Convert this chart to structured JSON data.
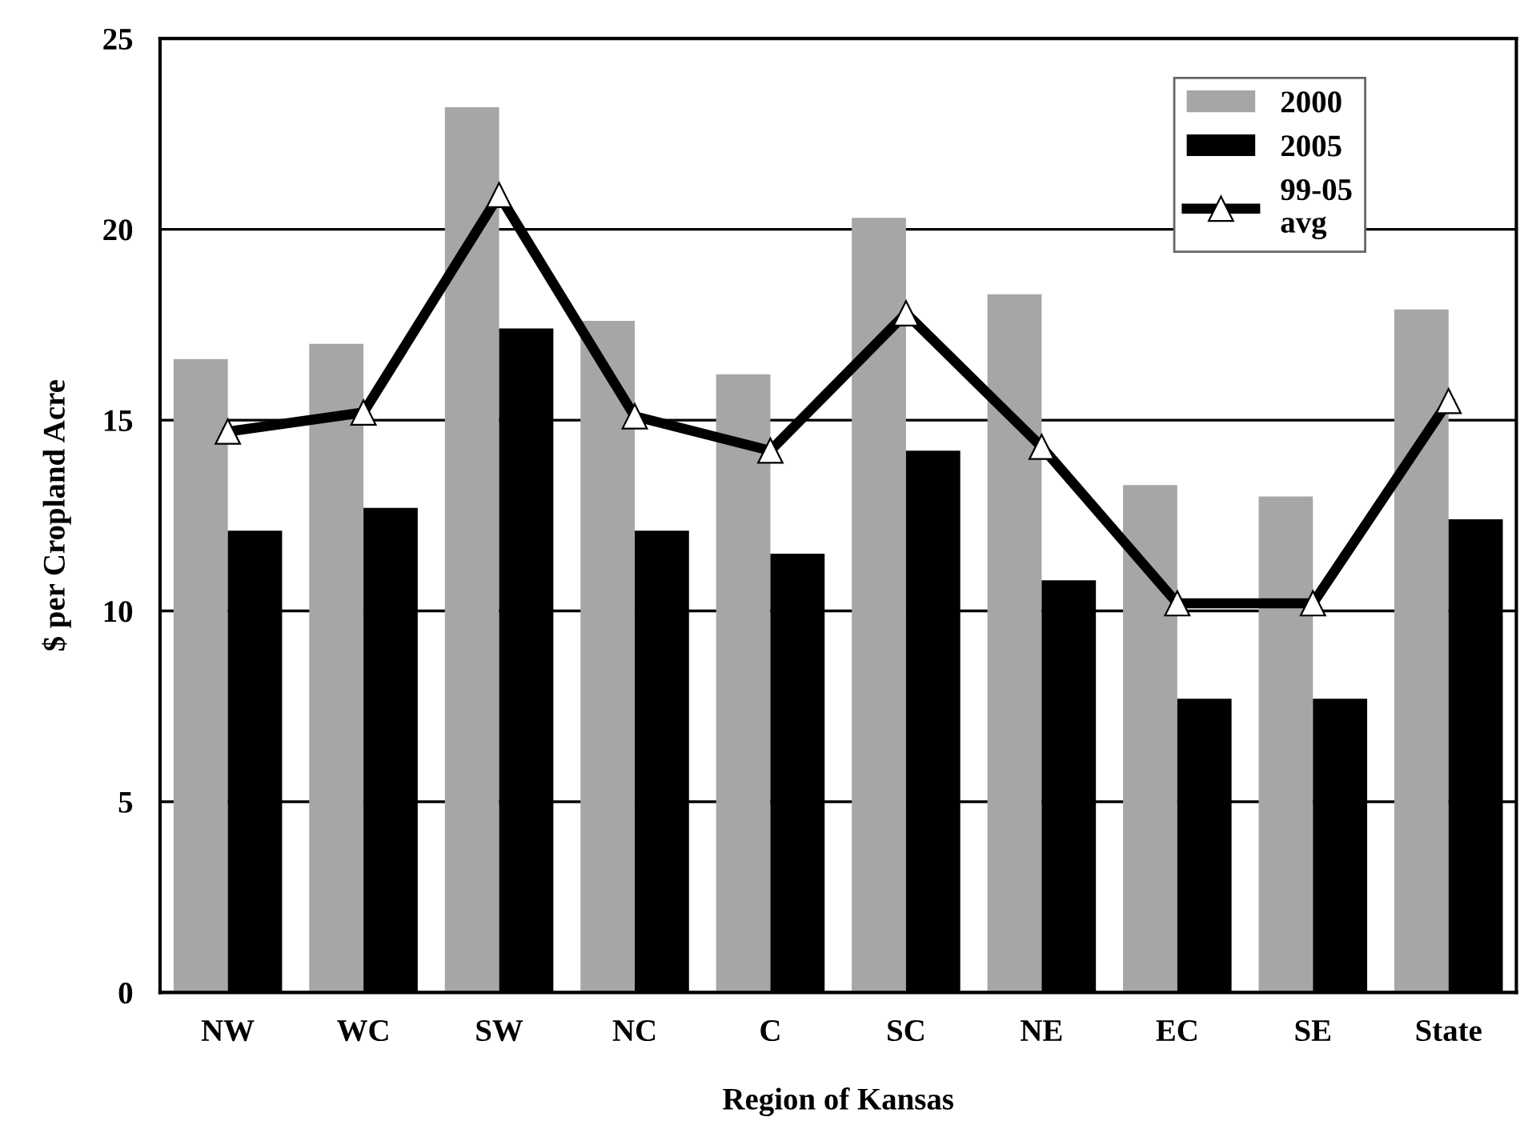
{
  "chart_data": {
    "type": "bar",
    "xlabel": "Region of Kansas",
    "ylabel": "$ per Cropland Acre",
    "categories": [
      "NW",
      "WC",
      "SW",
      "NC",
      "C",
      "SC",
      "NE",
      "EC",
      "SE",
      "State"
    ],
    "series": [
      {
        "name": "2000",
        "color": "#a6a6a6",
        "values": [
          16.6,
          17.0,
          23.2,
          17.6,
          16.2,
          20.3,
          18.3,
          13.3,
          13.0,
          17.9
        ]
      },
      {
        "name": "2005",
        "color": "#000000",
        "values": [
          12.1,
          12.7,
          17.4,
          12.1,
          11.5,
          14.2,
          10.8,
          7.7,
          7.7,
          12.4
        ]
      },
      {
        "name": "99-05\navg",
        "type": "line",
        "color": "#000000",
        "marker": "triangle",
        "values": [
          14.7,
          15.2,
          20.9,
          15.1,
          14.2,
          17.8,
          14.3,
          10.2,
          10.2,
          15.5
        ]
      }
    ],
    "ylim": [
      0,
      25
    ],
    "yticks": [
      0,
      5,
      10,
      15,
      20,
      25
    ],
    "grid": "y",
    "legend": "top right"
  }
}
